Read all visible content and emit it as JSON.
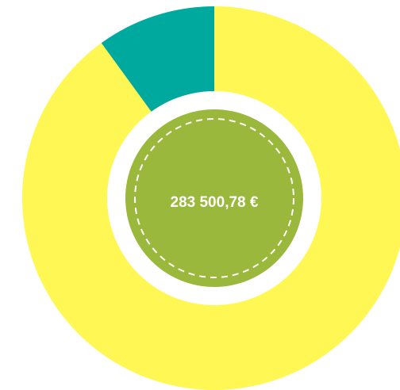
{
  "chart_data": {
    "type": "pie",
    "donut": true,
    "values": [
      90,
      10
    ],
    "colors": [
      "#fff754",
      "#00a99d"
    ],
    "center_label": "283 500,78 €",
    "center_color": "#9ab83c"
  }
}
